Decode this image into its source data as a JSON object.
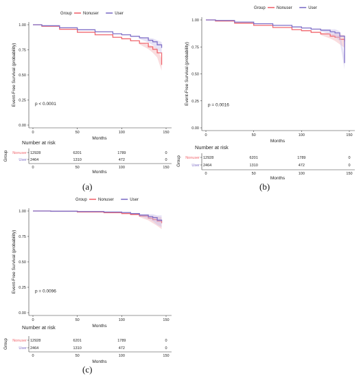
{
  "legend": {
    "title": "Group",
    "items": [
      "Nonuser",
      "User"
    ]
  },
  "colors": {
    "Nonuser": "#f0666e",
    "User": "#7f6fc7",
    "axis": "#333333",
    "band_nonuser": "#f5b3b7",
    "band_user": "#c9c1ea"
  },
  "risk_table": {
    "title": "Number at risk",
    "ylabel": "Group",
    "rows": [
      "Nonuser",
      "User"
    ]
  },
  "panels": [
    {
      "caption": "(a)",
      "pvalue": "p < 0.0001"
    },
    {
      "caption": "(b)",
      "pvalue": "p = 0.0016"
    },
    {
      "caption": "(c)",
      "pvalue": "p = 0.0096"
    }
  ],
  "chart_data": [
    {
      "type": "line",
      "xlabel": "Months",
      "ylabel": "Event-Free Survival (probability)",
      "xlim": [
        0,
        150
      ],
      "ylim": [
        0,
        1
      ],
      "xticks": [
        0,
        50,
        100,
        150
      ],
      "yticks": [
        "0.00",
        "0.25",
        "0.50",
        "0.75",
        "1.00"
      ],
      "series": [
        {
          "name": "Nonuser",
          "x": [
            0,
            10,
            30,
            50,
            70,
            90,
            100,
            110,
            120,
            130,
            135,
            140,
            145
          ],
          "y": [
            1.0,
            0.985,
            0.955,
            0.925,
            0.9,
            0.875,
            0.86,
            0.84,
            0.815,
            0.78,
            0.755,
            0.72,
            0.6
          ]
        },
        {
          "name": "User",
          "x": [
            0,
            10,
            30,
            50,
            70,
            90,
            100,
            110,
            120,
            130,
            135,
            140,
            145
          ],
          "y": [
            1.0,
            0.99,
            0.97,
            0.95,
            0.93,
            0.91,
            0.9,
            0.885,
            0.87,
            0.845,
            0.83,
            0.8,
            0.77
          ]
        }
      ],
      "risk_table": {
        "x": [
          0,
          50,
          100,
          150
        ],
        "Nonuser": [
          "12928",
          "6201",
          "1789",
          "0"
        ],
        "User": [
          "2464",
          "1310",
          "472",
          "0"
        ]
      }
    },
    {
      "type": "line",
      "xlabel": "Months",
      "ylabel": "Event-Free Survival (probability)",
      "xlim": [
        0,
        150
      ],
      "ylim": [
        0,
        1
      ],
      "xticks": [
        0,
        50,
        100,
        150
      ],
      "yticks": [
        "0.00",
        "0.25",
        "0.50",
        "0.75",
        "1.00"
      ],
      "series": [
        {
          "name": "Nonuser",
          "x": [
            0,
            10,
            30,
            50,
            70,
            90,
            100,
            110,
            120,
            130,
            135,
            140,
            145
          ],
          "y": [
            1.0,
            0.99,
            0.97,
            0.95,
            0.93,
            0.91,
            0.9,
            0.885,
            0.87,
            0.85,
            0.84,
            0.82,
            0.8
          ]
        },
        {
          "name": "User",
          "x": [
            0,
            10,
            30,
            50,
            70,
            90,
            100,
            110,
            120,
            130,
            135,
            140,
            145
          ],
          "y": [
            1.0,
            0.995,
            0.98,
            0.965,
            0.95,
            0.935,
            0.925,
            0.915,
            0.905,
            0.89,
            0.88,
            0.85,
            0.6
          ]
        }
      ],
      "risk_table": {
        "x": [
          0,
          50,
          100,
          150
        ],
        "Nonuser": [
          "12928",
          "6201",
          "1789",
          "0"
        ],
        "User": [
          "2464",
          "1310",
          "472",
          "0"
        ]
      }
    },
    {
      "type": "line",
      "xlabel": "Months",
      "ylabel": "Event-Free Survival (probability)",
      "xlim": [
        0,
        150
      ],
      "ylim": [
        0,
        1
      ],
      "xticks": [
        0,
        50,
        100,
        150
      ],
      "yticks": [
        "0.00",
        "0.25",
        "0.50",
        "0.75",
        "1.00"
      ],
      "series": [
        {
          "name": "Nonuser",
          "x": [
            0,
            20,
            50,
            80,
            100,
            110,
            120,
            130,
            135,
            140,
            145
          ],
          "y": [
            1.0,
            0.997,
            0.99,
            0.983,
            0.975,
            0.965,
            0.95,
            0.93,
            0.915,
            0.9,
            0.88
          ]
        },
        {
          "name": "User",
          "x": [
            0,
            20,
            50,
            80,
            100,
            110,
            120,
            130,
            135,
            140,
            145
          ],
          "y": [
            1.0,
            0.998,
            0.995,
            0.99,
            0.985,
            0.975,
            0.96,
            0.945,
            0.935,
            0.91,
            0.9
          ]
        }
      ],
      "risk_table": {
        "x": [
          0,
          50,
          100,
          150
        ],
        "Nonuser": [
          "12928",
          "6201",
          "1789",
          "0"
        ],
        "User": [
          "2464",
          "1310",
          "472",
          "0"
        ]
      }
    }
  ]
}
